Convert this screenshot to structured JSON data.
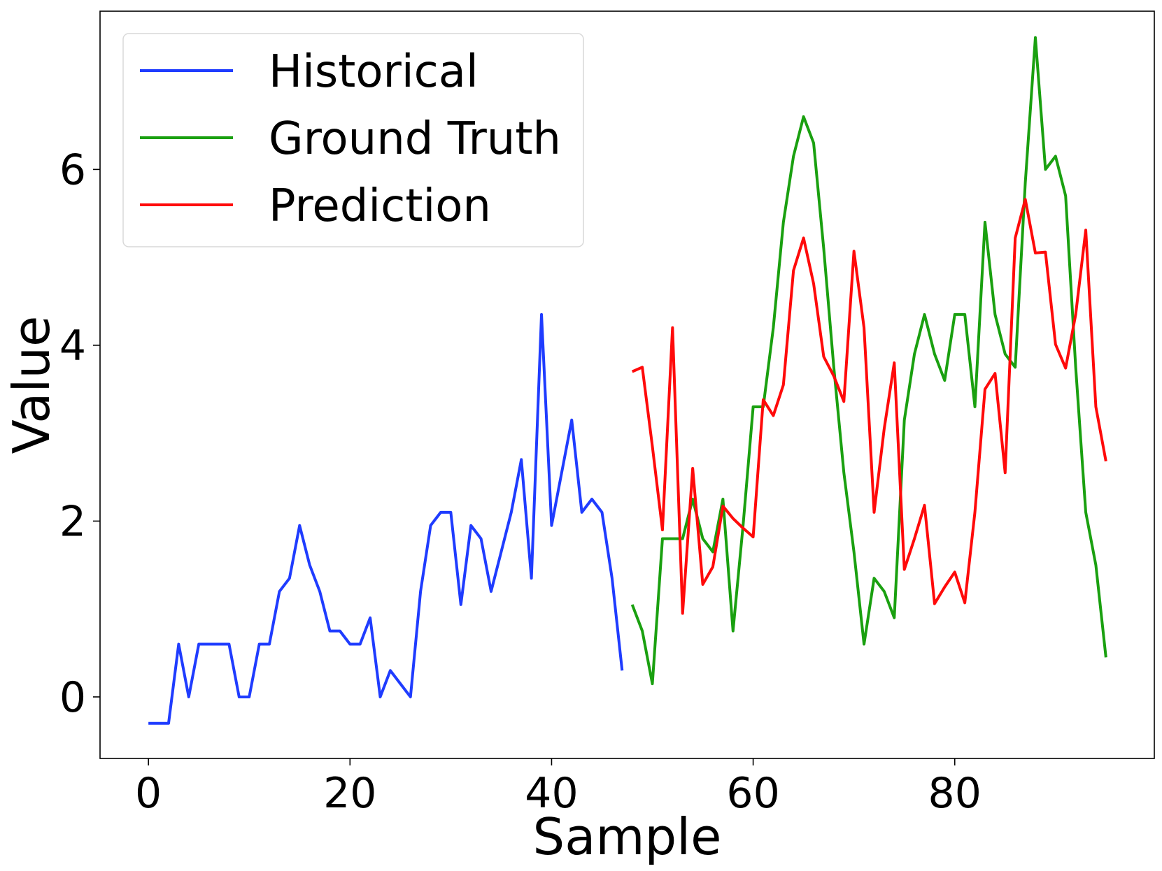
{
  "chart_data": {
    "type": "line",
    "title": "",
    "xlabel": "Sample",
    "ylabel": "Value",
    "xlim": [
      -4.8,
      99.8
    ],
    "ylim": [
      -0.7,
      7.8
    ],
    "xticks": [
      0,
      20,
      40,
      60,
      80
    ],
    "yticks": [
      0,
      2,
      4,
      6
    ],
    "grid": false,
    "legend": "top-left",
    "series": [
      {
        "name": "Historical",
        "color": "#1f3cff",
        "x_start": 0,
        "values": [
          -0.3,
          -0.3,
          -0.3,
          0.6,
          0.0,
          0.6,
          0.6,
          0.6,
          0.6,
          0.0,
          0.0,
          0.6,
          0.6,
          1.2,
          1.35,
          1.95,
          1.5,
          1.2,
          0.75,
          0.75,
          0.6,
          0.6,
          0.9,
          0.0,
          0.3,
          0.15,
          0.0,
          1.2,
          1.95,
          2.1,
          2.1,
          1.05,
          1.95,
          1.8,
          1.2,
          1.65,
          2.1,
          2.7,
          1.35,
          4.35,
          1.95,
          2.55,
          3.15,
          2.1,
          2.25,
          2.1,
          1.35,
          0.3
        ]
      },
      {
        "name": "Ground Truth",
        "color": "#1aa010",
        "x_start": 48,
        "values": [
          1.05,
          0.75,
          0.15,
          1.8,
          1.8,
          1.8,
          2.25,
          1.8,
          1.65,
          2.25,
          0.75,
          1.95,
          3.3,
          3.3,
          4.2,
          5.4,
          6.15,
          6.6,
          6.3,
          5.1,
          3.75,
          2.55,
          1.65,
          0.6,
          1.35,
          1.2,
          0.9,
          3.15,
          3.9,
          4.35,
          3.9,
          3.6,
          4.35,
          4.35,
          3.3,
          5.4,
          4.35,
          3.9,
          3.75,
          5.85,
          7.5,
          6.0,
          6.15,
          5.7,
          3.75,
          2.1,
          1.5,
          0.45
        ]
      },
      {
        "name": "Prediction",
        "color": "#ff0a0a",
        "x_start": 48,
        "values": [
          3.7,
          3.75,
          2.85,
          1.9,
          4.2,
          0.95,
          2.6,
          1.28,
          1.48,
          2.17,
          2.03,
          1.92,
          1.82,
          3.38,
          3.2,
          3.55,
          4.85,
          5.22,
          4.7,
          3.87,
          3.65,
          3.36,
          5.07,
          4.2,
          2.1,
          3.05,
          3.8,
          1.45,
          1.8,
          2.18,
          1.06,
          1.25,
          1.42,
          1.07,
          2.1,
          3.5,
          3.68,
          2.55,
          5.22,
          5.66,
          5.05,
          5.06,
          4.01,
          3.74,
          4.35,
          5.31,
          3.3,
          2.68
        ]
      }
    ]
  }
}
